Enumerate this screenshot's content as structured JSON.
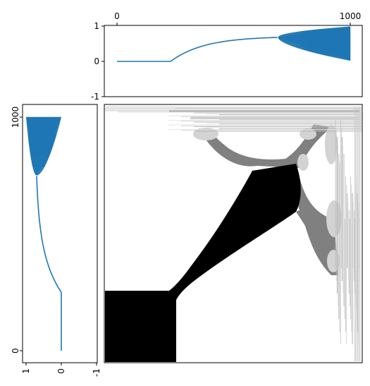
{
  "chart_data": [
    {
      "type": "line",
      "panel": "top",
      "series_color": "#1f77b4",
      "xlim": [
        0,
        1000
      ],
      "ylim": [
        -1,
        1
      ],
      "x_tick_labels": [
        "0",
        "1000"
      ],
      "y_tick_labels": [
        "1",
        "0",
        "-1"
      ],
      "x_ticks": [
        0,
        1000
      ],
      "y_ticks": [
        1,
        0,
        -1
      ],
      "flat_until": 230,
      "oscillation_start": 690,
      "value_at_oscillation_start": 0.68,
      "final_envelope": [
        0.02,
        0.99
      ]
    },
    {
      "type": "line",
      "panel": "left",
      "orientation": "vertical",
      "series_color": "#1f77b4",
      "xlim": [
        1,
        -1
      ],
      "ylim": [
        0,
        1000
      ],
      "x_tick_labels": [
        "1",
        "0",
        "-1"
      ],
      "y_tick_labels": [
        "0",
        "1000"
      ],
      "x_ticks": [
        1,
        0,
        -1
      ],
      "y_ticks": [
        0,
        1000
      ],
      "flat_until": 250,
      "oscillation_start": 750,
      "value_at_oscillation_start": 0.7,
      "final_envelope": [
        0.0,
        1.0
      ]
    },
    {
      "type": "heatmap",
      "panel": "main",
      "palette": [
        "#000000",
        "#808080",
        "#d3d3d3",
        "#ffffff"
      ]
    }
  ]
}
